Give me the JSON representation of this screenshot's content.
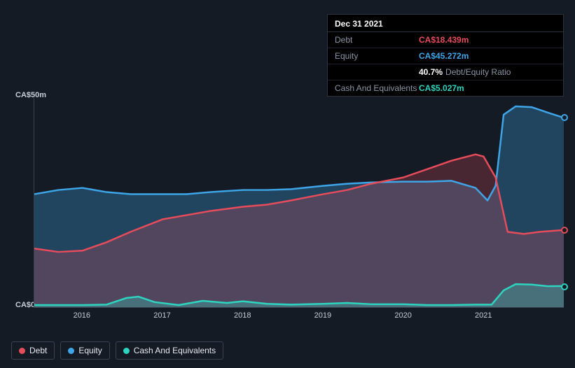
{
  "tooltip": {
    "date": "Dec 31 2021",
    "rows": [
      {
        "label": "Debt",
        "value": "CA$18.439m",
        "color": "#e74c5b"
      },
      {
        "label": "Equity",
        "value": "CA$45.272m",
        "color": "#3ea6e8"
      },
      {
        "label": "",
        "value": "40.7%",
        "sub": "Debt/Equity Ratio",
        "color": "#ffffff"
      },
      {
        "label": "Cash And Equivalents",
        "value": "CA$5.027m",
        "color": "#2dd4bf"
      }
    ]
  },
  "chart": {
    "type": "area",
    "background": "#151b24",
    "grid_color": "#3a4252",
    "ylim": [
      0,
      50
    ],
    "y_labels": [
      {
        "text": "CA$50m",
        "v": 50
      },
      {
        "text": "CA$0",
        "v": 0
      }
    ],
    "x_years": [
      2016,
      2017,
      2018,
      2019,
      2020,
      2021
    ],
    "x_range": [
      2015.4,
      2022.0
    ],
    "series": {
      "debt": {
        "color": "#e74c5b",
        "fill": "rgba(231,76,91,0.25)",
        "label": "Debt",
        "points": [
          [
            2015.4,
            14
          ],
          [
            2015.7,
            13.2
          ],
          [
            2016.0,
            13.5
          ],
          [
            2016.3,
            15.5
          ],
          [
            2016.6,
            18
          ],
          [
            2017.0,
            21
          ],
          [
            2017.3,
            22
          ],
          [
            2017.6,
            23
          ],
          [
            2018.0,
            24
          ],
          [
            2018.3,
            24.5
          ],
          [
            2018.6,
            25.5
          ],
          [
            2019.0,
            27
          ],
          [
            2019.3,
            28
          ],
          [
            2019.6,
            29.5
          ],
          [
            2020.0,
            31
          ],
          [
            2020.3,
            33
          ],
          [
            2020.6,
            35
          ],
          [
            2020.9,
            36.5
          ],
          [
            2021.0,
            36
          ],
          [
            2021.15,
            31
          ],
          [
            2021.3,
            18
          ],
          [
            2021.5,
            17.5
          ],
          [
            2021.7,
            18
          ],
          [
            2022.0,
            18.439
          ]
        ]
      },
      "equity": {
        "color": "#3ea6e8",
        "fill": "rgba(62,166,232,0.30)",
        "label": "Equity",
        "points": [
          [
            2015.4,
            27
          ],
          [
            2015.7,
            28
          ],
          [
            2016.0,
            28.5
          ],
          [
            2016.3,
            27.5
          ],
          [
            2016.6,
            27
          ],
          [
            2017.0,
            27
          ],
          [
            2017.3,
            27
          ],
          [
            2017.6,
            27.5
          ],
          [
            2018.0,
            28
          ],
          [
            2018.3,
            28
          ],
          [
            2018.6,
            28.2
          ],
          [
            2019.0,
            29
          ],
          [
            2019.3,
            29.5
          ],
          [
            2019.6,
            29.8
          ],
          [
            2020.0,
            30
          ],
          [
            2020.3,
            30
          ],
          [
            2020.6,
            30.2
          ],
          [
            2020.9,
            28.5
          ],
          [
            2021.05,
            25.5
          ],
          [
            2021.15,
            29
          ],
          [
            2021.25,
            46
          ],
          [
            2021.4,
            48
          ],
          [
            2021.6,
            47.8
          ],
          [
            2021.8,
            46.5
          ],
          [
            2022.0,
            45.272
          ]
        ]
      },
      "cash": {
        "color": "#2dd4bf",
        "fill": "rgba(45,212,191,0.30)",
        "label": "Cash And Equivalents",
        "points": [
          [
            2015.4,
            0.5
          ],
          [
            2015.7,
            0.5
          ],
          [
            2016.0,
            0.5
          ],
          [
            2016.3,
            0.6
          ],
          [
            2016.55,
            2.2
          ],
          [
            2016.7,
            2.5
          ],
          [
            2016.9,
            1.2
          ],
          [
            2017.2,
            0.5
          ],
          [
            2017.5,
            1.5
          ],
          [
            2017.8,
            1.0
          ],
          [
            2018.0,
            1.4
          ],
          [
            2018.3,
            0.8
          ],
          [
            2018.6,
            0.6
          ],
          [
            2019.0,
            0.8
          ],
          [
            2019.3,
            1.0
          ],
          [
            2019.6,
            0.7
          ],
          [
            2020.0,
            0.7
          ],
          [
            2020.3,
            0.5
          ],
          [
            2020.6,
            0.5
          ],
          [
            2020.9,
            0.6
          ],
          [
            2021.1,
            0.6
          ],
          [
            2021.25,
            4.0
          ],
          [
            2021.4,
            5.5
          ],
          [
            2021.6,
            5.4
          ],
          [
            2021.8,
            5.0
          ],
          [
            2022.0,
            5.027
          ]
        ]
      }
    },
    "line_width": 2.5,
    "label_fontsize": 11
  },
  "legend": [
    {
      "label": "Debt",
      "color": "#e74c5b"
    },
    {
      "label": "Equity",
      "color": "#3ea6e8"
    },
    {
      "label": "Cash And Equivalents",
      "color": "#2dd4bf"
    }
  ]
}
